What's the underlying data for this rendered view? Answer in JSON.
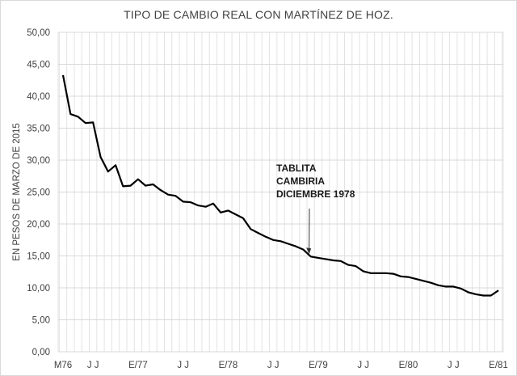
{
  "chart_data": {
    "type": "line",
    "title": "TIPO DE CAMBIO REAL CON MARTÍNEZ DE HOZ.",
    "xlabel": "",
    "ylabel": "EN PESOS DE MARZO DE 2015",
    "ylim": [
      0,
      50
    ],
    "ytick_step": 5,
    "yticks": [
      "0,00",
      "5,00",
      "10,00",
      "15,00",
      "20,00",
      "25,00",
      "30,00",
      "35,00",
      "40,00",
      "45,00",
      "50,00"
    ],
    "grid": true,
    "legend": "none",
    "x_tick_labels": [
      {
        "index": 0,
        "label": "M76"
      },
      {
        "index": 4,
        "label": "J J"
      },
      {
        "index": 10,
        "label": "E/77"
      },
      {
        "index": 16,
        "label": "J J"
      },
      {
        "index": 22,
        "label": "E/78"
      },
      {
        "index": 28,
        "label": "J J"
      },
      {
        "index": 34,
        "label": "E/79"
      },
      {
        "index": 40,
        "label": "J J"
      },
      {
        "index": 46,
        "label": "E/80"
      },
      {
        "index": 52,
        "label": "J J"
      },
      {
        "index": 58,
        "label": "E/81"
      }
    ],
    "series": [
      {
        "name": "Tipo de cambio real",
        "color": "#000000",
        "values": [
          43.3,
          37.2,
          36.8,
          35.8,
          35.9,
          30.5,
          28.2,
          29.2,
          25.9,
          26.0,
          27.0,
          26.0,
          26.2,
          25.3,
          24.6,
          24.4,
          23.5,
          23.4,
          22.9,
          22.7,
          23.2,
          21.8,
          22.1,
          21.5,
          20.9,
          19.2,
          18.6,
          18.0,
          17.5,
          17.3,
          16.9,
          16.5,
          16.0,
          14.9,
          14.7,
          14.5,
          14.3,
          14.2,
          13.6,
          13.4,
          12.6,
          12.3,
          12.3,
          12.3,
          12.2,
          11.8,
          11.7,
          11.4,
          11.1,
          10.8,
          10.4,
          10.2,
          10.2,
          9.9,
          9.3,
          9.0,
          8.8,
          8.8,
          9.6
        ]
      }
    ],
    "annotations": [
      {
        "lines": [
          "TABLITA",
          "CAMBIRIA",
          "DICIEMBRE 1978"
        ],
        "arrow_to_index": 33
      }
    ]
  }
}
